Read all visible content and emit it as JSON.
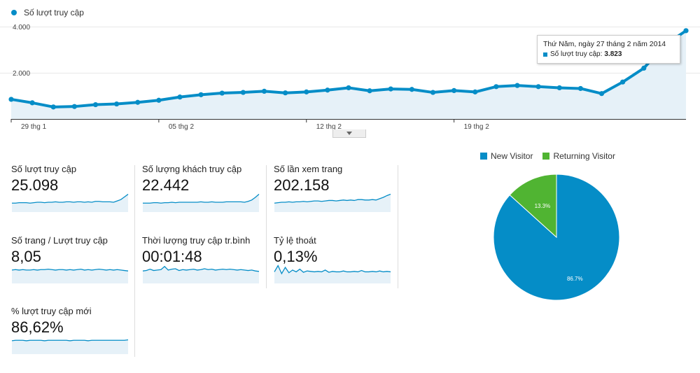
{
  "chart_data": [
    {
      "type": "line",
      "series": [
        {
          "name": "Số lượt truy cập",
          "values": [
            850,
            700,
            520,
            540,
            620,
            650,
            720,
            810,
            950,
            1050,
            1120,
            1150,
            1200,
            1130,
            1170,
            1250,
            1350,
            1220,
            1300,
            1280,
            1150,
            1230,
            1170,
            1400,
            1450,
            1400,
            1350,
            1320,
            1100,
            1600,
            2200,
            3200,
            3823
          ]
        }
      ],
      "x_tick_labels": [
        "29 thg 1",
        "05 thg 2",
        "12 thg 2",
        "19 thg 2"
      ],
      "y_tick_labels": [
        "4.000",
        "2.000"
      ],
      "ylim": [
        0,
        4000
      ]
    },
    {
      "type": "pie",
      "labels": [
        "New Visitor",
        "Returning Visitor"
      ],
      "values": [
        86.7,
        13.3
      ],
      "value_labels": [
        "86.7%",
        "13.3%"
      ],
      "colors": [
        "#058dc7",
        "#50b432"
      ]
    }
  ],
  "legend": {
    "label": "Số lượt truy cập",
    "color": "#058dc7"
  },
  "tooltip": {
    "title": "Thứ Năm, ngày 27 tháng 2 năm 2014",
    "label": "Số lượt truy cập:",
    "value": "3.823"
  },
  "metrics": [
    {
      "label": "Số lượt truy cập",
      "value": "25.098",
      "spark": [
        20,
        20,
        21,
        21,
        21,
        20,
        21,
        22,
        22,
        21,
        22,
        22,
        23,
        22,
        22,
        23,
        23,
        22,
        23,
        23,
        22,
        23,
        22,
        24,
        24,
        23,
        23,
        23,
        22,
        25,
        28,
        34,
        40
      ]
    },
    {
      "label": "Số lượng khách truy cập",
      "value": "22.442",
      "spark": [
        20,
        20,
        20,
        21,
        21,
        20,
        21,
        21,
        22,
        21,
        22,
        22,
        22,
        22,
        22,
        22,
        23,
        22,
        22,
        23,
        22,
        22,
        22,
        23,
        23,
        23,
        23,
        23,
        22,
        24,
        27,
        33,
        40
      ]
    },
    {
      "label": "Số lần xem trang",
      "value": "202.158",
      "spark": [
        20,
        21,
        22,
        22,
        23,
        22,
        23,
        23,
        24,
        23,
        24,
        25,
        25,
        24,
        25,
        26,
        26,
        25,
        26,
        27,
        26,
        27,
        26,
        28,
        28,
        27,
        27,
        28,
        27,
        30,
        33,
        37,
        40
      ]
    },
    {
      "label": "Số trang / Lượt truy cập",
      "value": "8,05",
      "spark": [
        30,
        31,
        30,
        31,
        30,
        30,
        31,
        30,
        31,
        31,
        32,
        31,
        30,
        31,
        31,
        30,
        31,
        30,
        31,
        32,
        30,
        31,
        30,
        31,
        32,
        31,
        30,
        31,
        30,
        31,
        30,
        29,
        28
      ]
    },
    {
      "label": "Thời lượng truy cập tr.bình",
      "value": "00:01:48",
      "spark": [
        28,
        29,
        32,
        29,
        30,
        31,
        38,
        30,
        32,
        33,
        29,
        31,
        30,
        31,
        32,
        30,
        31,
        33,
        31,
        32,
        30,
        31,
        32,
        31,
        32,
        31,
        30,
        31,
        30,
        29,
        30,
        28,
        27
      ]
    },
    {
      "label": "Tỷ lệ thoát",
      "value": "0,13%",
      "spark": [
        26,
        40,
        22,
        36,
        24,
        30,
        26,
        32,
        25,
        28,
        27,
        26,
        27,
        26,
        30,
        25,
        27,
        26,
        26,
        28,
        26,
        26,
        27,
        26,
        29,
        26,
        26,
        27,
        26,
        28,
        26,
        27,
        26
      ]
    },
    {
      "label": "% lượt truy cập mới",
      "value": "86,62%",
      "spark": [
        30,
        31,
        31,
        31,
        30,
        31,
        31,
        31,
        31,
        30,
        31,
        31,
        31,
        31,
        31,
        31,
        30,
        31,
        31,
        31,
        31,
        30,
        31,
        31,
        31,
        31,
        31,
        31,
        31,
        31,
        31,
        31,
        32
      ]
    }
  ]
}
